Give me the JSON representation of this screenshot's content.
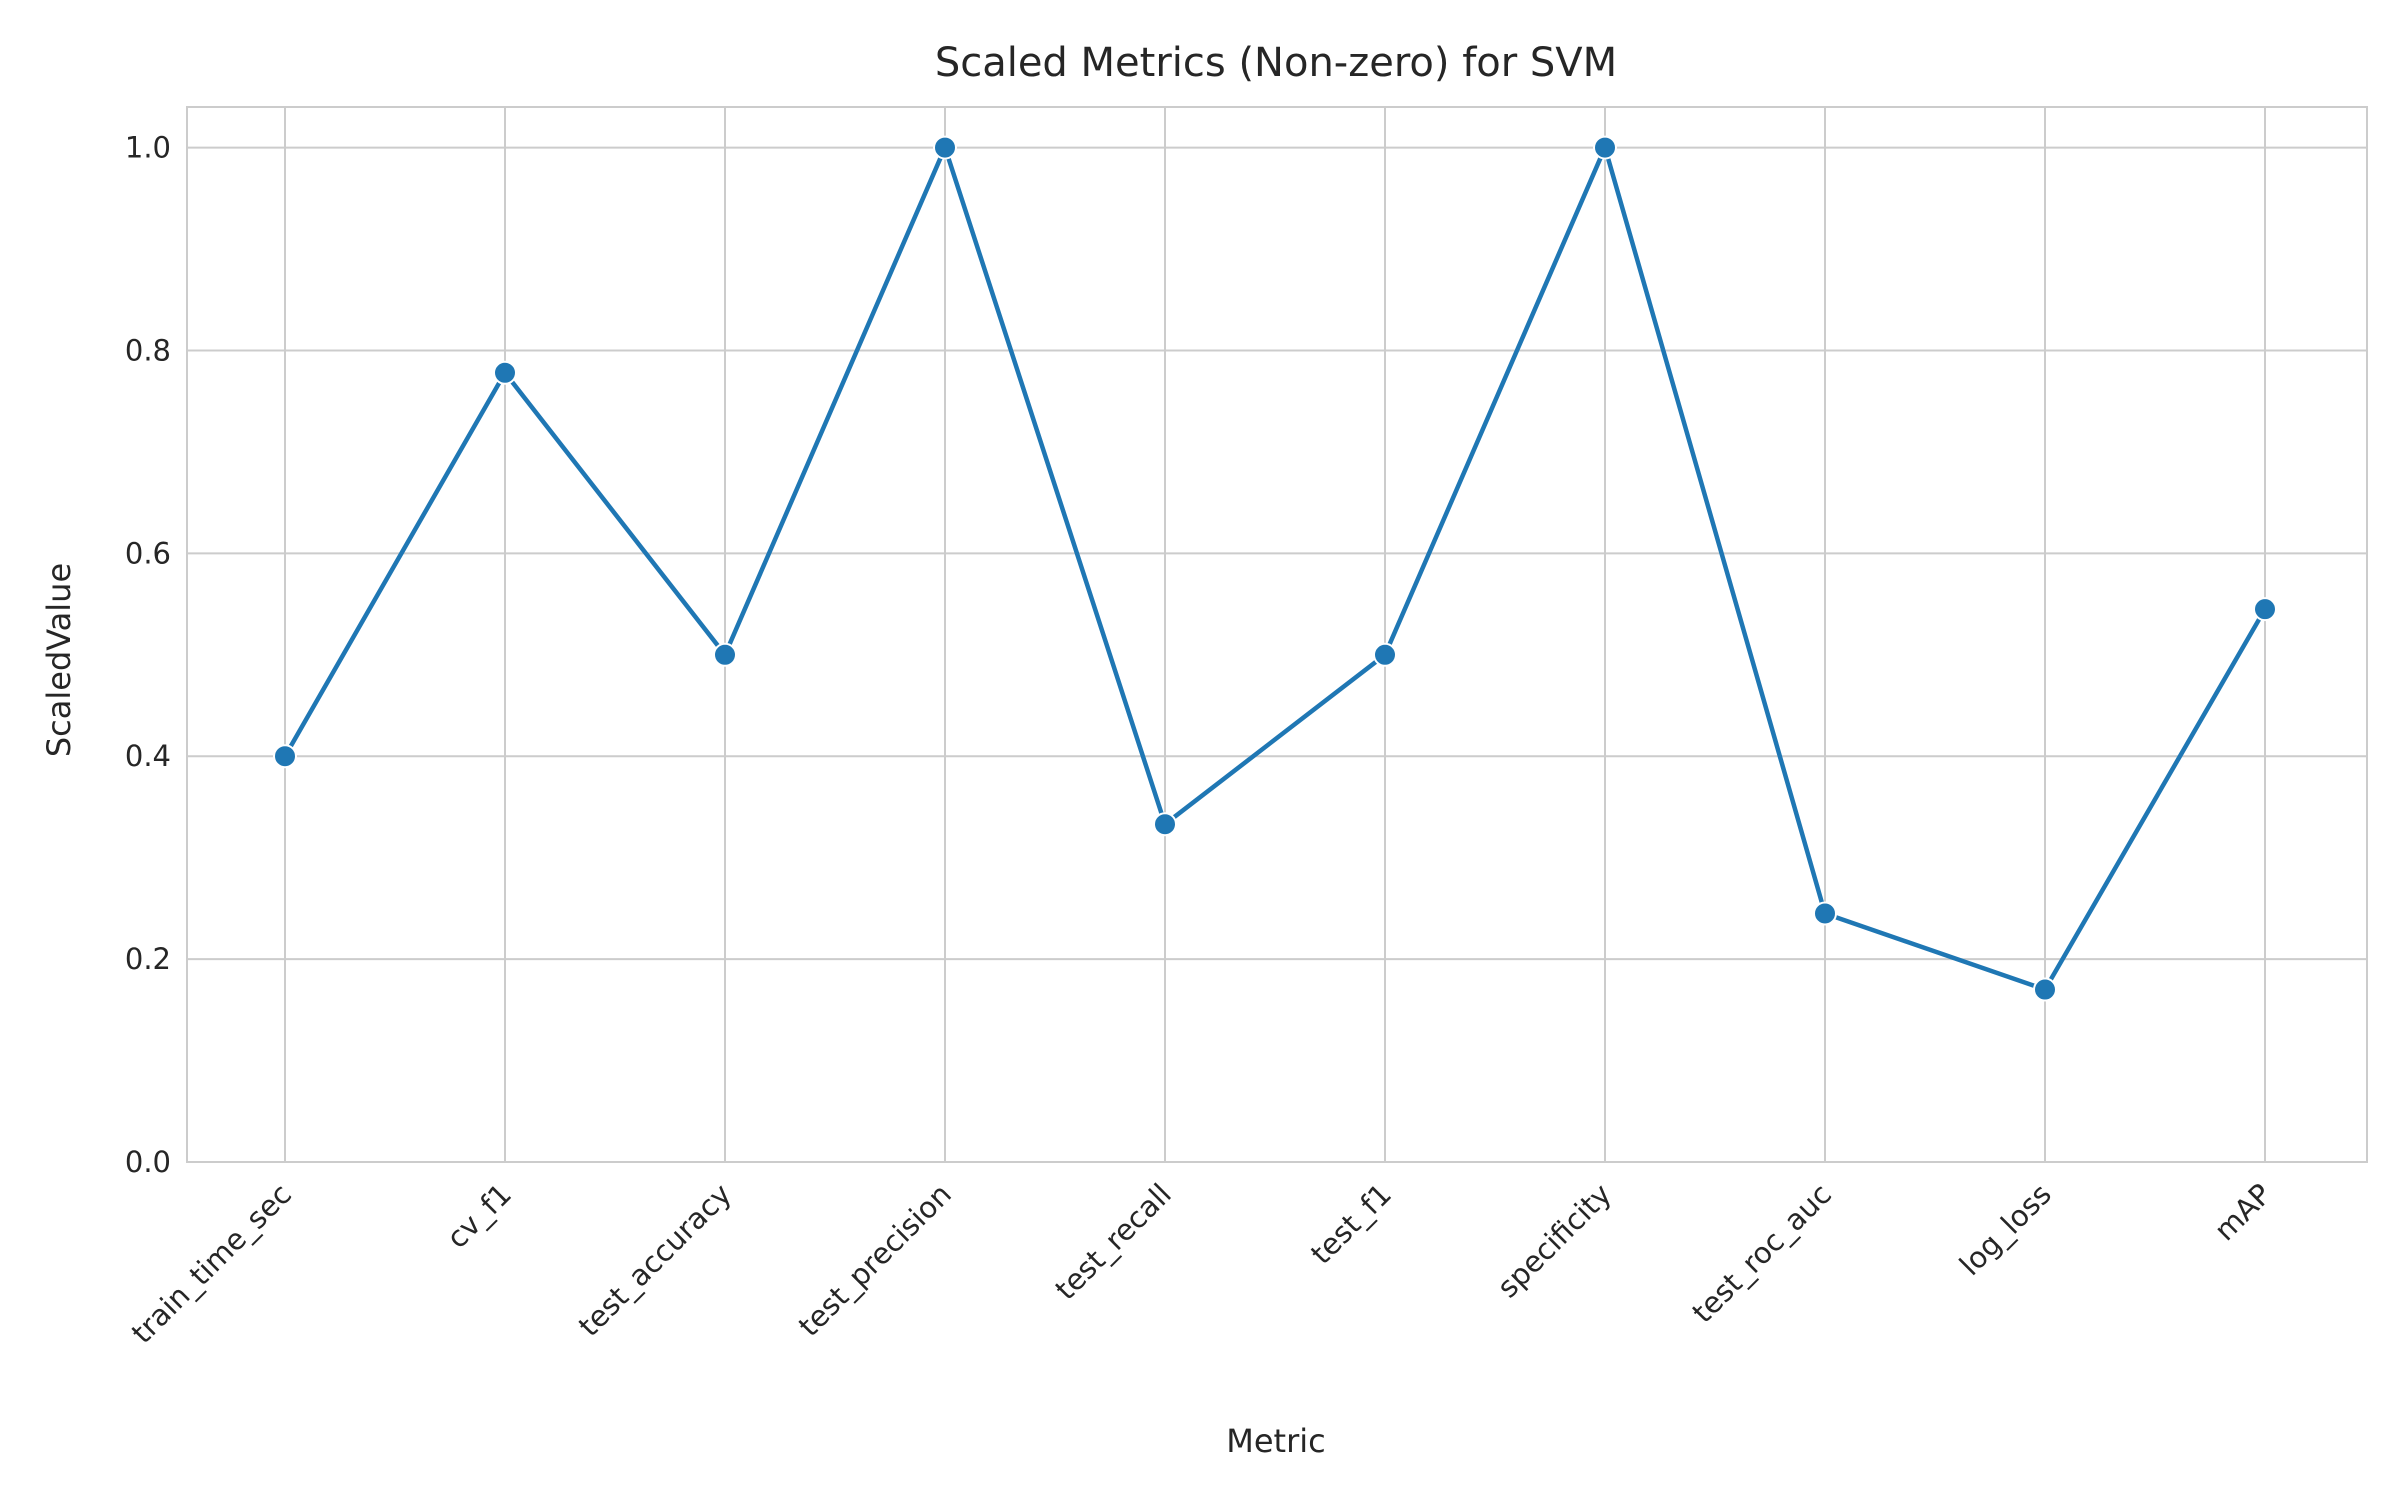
{
  "chart_data": {
    "type": "line",
    "title": "Scaled Metrics (Non-zero) for SVM",
    "xlabel": "Metric",
    "ylabel": "ScaledValue",
    "categories": [
      "train_time_sec",
      "cv_f1",
      "test_accuracy",
      "test_precision",
      "test_recall",
      "test_f1",
      "specificity",
      "test_roc_auc",
      "log_loss",
      "mAP"
    ],
    "values": [
      0.4,
      0.778,
      0.5,
      1.0,
      0.333,
      0.5,
      1.0,
      0.245,
      0.17,
      0.545
    ],
    "ylim": [
      0,
      1.04
    ],
    "yticks": [
      0.0,
      0.2,
      0.4,
      0.6,
      0.8,
      1.0
    ],
    "ytick_labels": [
      "0.0",
      "0.2",
      "0.4",
      "0.6",
      "0.8",
      "1.0"
    ],
    "grid": true,
    "line_color": "#1f77b4",
    "grid_color": "#cccccc"
  }
}
